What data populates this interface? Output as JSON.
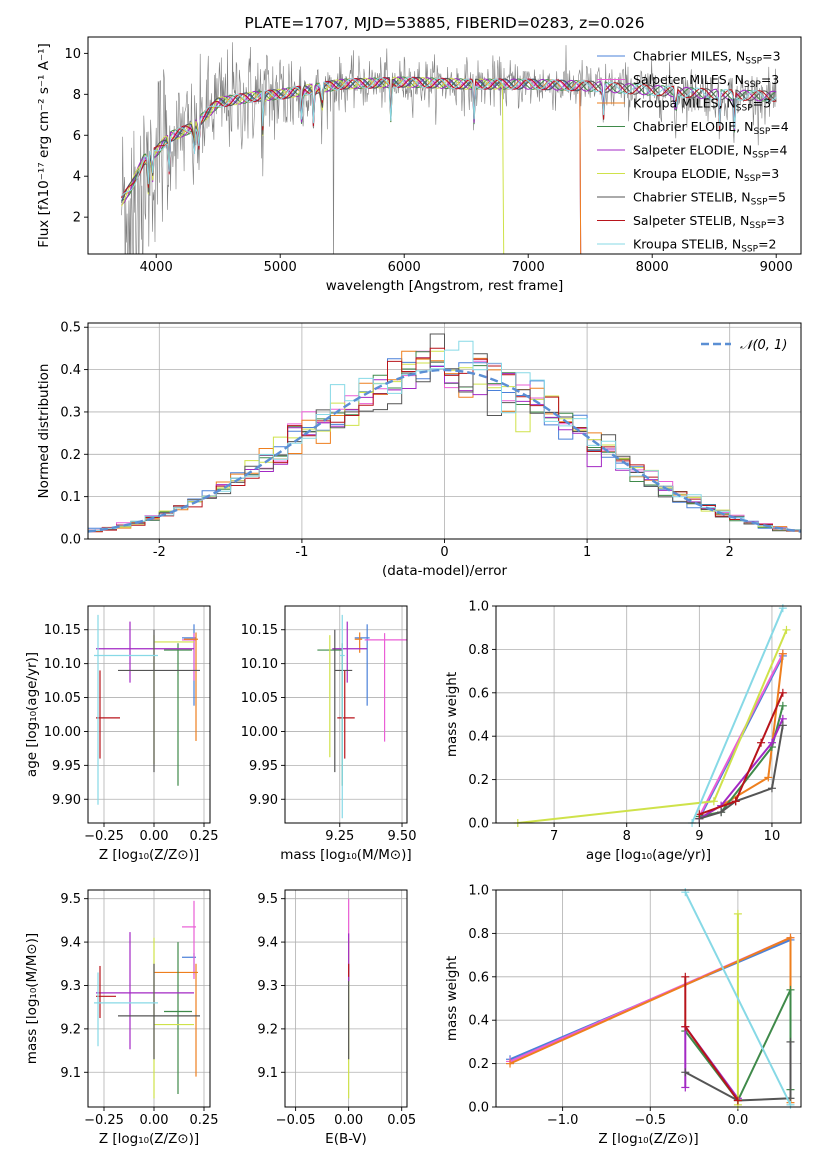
{
  "colors": {
    "chabrier_miles": "#4a80d9",
    "salpeter_miles": "#ea5fd6",
    "kroupa_miles": "#ee7f1e",
    "chabrier_elodie": "#3f8a4a",
    "salpeter_elodie": "#a329c4",
    "kroupa_elodie": "#cfe24a",
    "chabrier_stelib": "#555555",
    "salpeter_stelib": "#b8141b",
    "kroupa_stelib": "#87d9e6",
    "observed": "#808080",
    "normal": "#5b8fd4",
    "grid": "#b0b0b0"
  },
  "legend": [
    {
      "text": "Chabrier MILES, N",
      "sub": "SSP",
      "suffix": "=3",
      "color_key": "chabrier_miles"
    },
    {
      "text": "Salpeter MILES, N",
      "sub": "SSP",
      "suffix": "=3",
      "color_key": "salpeter_miles"
    },
    {
      "text": "Kroupa MILES, N",
      "sub": "SSP",
      "suffix": "=3",
      "color_key": "kroupa_miles"
    },
    {
      "text": "Chabrier ELODIE, N",
      "sub": "SSP",
      "suffix": "=4",
      "color_key": "chabrier_elodie"
    },
    {
      "text": "Salpeter ELODIE, N",
      "sub": "SSP",
      "suffix": "=4",
      "color_key": "salpeter_elodie"
    },
    {
      "text": "Kroupa ELODIE, N",
      "sub": "SSP",
      "suffix": "=3",
      "color_key": "kroupa_elodie"
    },
    {
      "text": "Chabrier STELIB, N",
      "sub": "SSP",
      "suffix": "=5",
      "color_key": "chabrier_stelib"
    },
    {
      "text": "Salpeter STELIB, N",
      "sub": "SSP",
      "suffix": "=3",
      "color_key": "salpeter_stelib"
    },
    {
      "text": "Kroupa STELIB, N",
      "sub": "SSP",
      "suffix": "=2",
      "color_key": "kroupa_stelib"
    }
  ],
  "chart_data": [
    {
      "id": "spectrum",
      "type": "line",
      "title": "PLATE=1707, MJD=53885, FIBERID=0283, z=0.026",
      "xlabel": "wavelength [Angstrom, rest frame]",
      "ylabel": "Flux [fλ10⁻¹⁷ erg cm⁻² s⁻¹ A⁻¹]",
      "xlim": [
        3450,
        9200
      ],
      "ylim": [
        0.2,
        10.8
      ],
      "xticks": [
        4000,
        5000,
        6000,
        7000,
        8000,
        9000
      ],
      "yticks": [
        2,
        4,
        6,
        8,
        10
      ],
      "continuum": [
        [
          3700,
          2.6
        ],
        [
          3800,
          3.5
        ],
        [
          3900,
          4.8
        ],
        [
          4000,
          5.2
        ],
        [
          4100,
          5.9
        ],
        [
          4300,
          6.4
        ],
        [
          4500,
          7.6
        ],
        [
          4800,
          7.9
        ],
        [
          5000,
          8.0
        ],
        [
          5200,
          8.2
        ],
        [
          5500,
          8.5
        ],
        [
          6000,
          8.6
        ],
        [
          6500,
          8.5
        ],
        [
          7000,
          8.5
        ],
        [
          7500,
          8.4
        ],
        [
          8000,
          8.2
        ],
        [
          8500,
          8.0
        ],
        [
          9000,
          7.9
        ]
      ],
      "model_cutoffs": [
        {
          "series": "Kroupa ELODIE",
          "x_end": 6800
        },
        {
          "series": "MILES",
          "x_end": 7420
        }
      ],
      "grid": false,
      "legend_position": "upper-right"
    },
    {
      "id": "residuals",
      "type": "histogram",
      "xlabel": "(data-model)/error",
      "ylabel": "Normed distribution",
      "xlim": [
        -2.5,
        2.5
      ],
      "ylim": [
        0,
        0.51
      ],
      "xticks": [
        -2,
        -1,
        0,
        1,
        2
      ],
      "yticks": [
        0.0,
        0.1,
        0.2,
        0.3,
        0.4,
        0.5
      ],
      "reference_curve": "normal(0,1)",
      "reference_label": "𝒩(0, 1)",
      "bin_width": 0.1,
      "grid": true,
      "legend_position": "upper-right"
    },
    {
      "id": "age_vs_Z",
      "type": "errorbar",
      "xlabel": "Z [log₁₀(Z/Z⊙)]",
      "ylabel": "age  [log₁₀(age/yr)]",
      "xlim": [
        -0.33,
        0.28
      ],
      "ylim": [
        9.865,
        10.185
      ],
      "xticks": [
        -0.25,
        0.0,
        0.25
      ],
      "xticklabels": [
        "−0.25",
        "0.00",
        "0.25"
      ],
      "yticks": [
        9.9,
        9.95,
        10.0,
        10.05,
        10.1,
        10.15
      ],
      "points": [
        {
          "series": "chabrier_miles",
          "x": 0.2,
          "y": 10.138,
          "xerr": [
            0.06,
            0.01
          ],
          "yerr": [
            0.1,
            0.02
          ]
        },
        {
          "series": "salpeter_miles",
          "x": 0.2,
          "y": 10.135,
          "xerr": [
            0.06,
            0.01
          ],
          "yerr": [
            0.06,
            0.01
          ]
        },
        {
          "series": "kroupa_miles",
          "x": 0.21,
          "y": 10.136,
          "xerr": [
            0.06,
            0.01
          ],
          "yerr": [
            0.15,
            0.01
          ]
        },
        {
          "series": "chabrier_elodie",
          "x": 0.12,
          "y": 10.12,
          "xerr": [
            0.07,
            0.07
          ],
          "yerr": [
            0.2,
            0.01
          ]
        },
        {
          "series": "salpeter_elodie",
          "x": -0.12,
          "y": 10.122,
          "xerr": [
            0.17,
            0.32
          ],
          "yerr": [
            0.05,
            0.04
          ]
        },
        {
          "series": "kroupa_elodie",
          "x": 0.0,
          "y": 10.132,
          "xerr": [
            0.0,
            0.2
          ],
          "yerr": [
            0.18,
            0.01
          ]
        },
        {
          "series": "chabrier_stelib",
          "x": 0.0,
          "y": 10.09,
          "xerr": [
            0.18,
            0.23
          ],
          "yerr": [
            0.15,
            0.06
          ]
        },
        {
          "series": "salpeter_stelib",
          "x": -0.27,
          "y": 10.02,
          "xerr": [
            0.02,
            0.1
          ],
          "yerr": [
            0.06,
            0.07
          ]
        },
        {
          "series": "kroupa_stelib",
          "x": -0.28,
          "y": 10.112,
          "xerr": [
            0.02,
            0.3
          ],
          "yerr": [
            0.22,
            0.06
          ]
        }
      ]
    },
    {
      "id": "age_vs_mass",
      "type": "errorbar",
      "xlabel": "mass [log₁₀(M/M⊙)]",
      "ylabel": "",
      "xlim": [
        9.03,
        9.52
      ],
      "ylim": [
        9.865,
        10.185
      ],
      "xticks": [
        9.0,
        9.25,
        9.5
      ],
      "xticklabels": [
        "9.00",
        "9.25",
        "9.50"
      ],
      "yticks": [
        9.9,
        9.95,
        10.0,
        10.05,
        10.1,
        10.15
      ],
      "points": [
        {
          "series": "chabrier_miles",
          "x": 9.36,
          "y": 10.138,
          "xerr": [
            0.05,
            0.01
          ],
          "yerr": [
            0.1,
            0.02
          ]
        },
        {
          "series": "salpeter_miles",
          "x": 9.43,
          "y": 10.135,
          "xerr": [
            0.08,
            0.09
          ],
          "yerr": [
            0.15,
            0.01
          ]
        },
        {
          "series": "kroupa_miles",
          "x": 9.33,
          "y": 10.136,
          "xerr": [
            0.02,
            0.01
          ],
          "yerr": [
            0.02,
            0.01
          ]
        },
        {
          "series": "chabrier_elodie",
          "x": 9.26,
          "y": 10.12,
          "xerr": [
            0.1,
            0.0
          ],
          "yerr": [
            0.2,
            0.01
          ]
        },
        {
          "series": "salpeter_elodie",
          "x": 9.28,
          "y": 10.122,
          "xerr": [
            0.06,
            0.08
          ],
          "yerr": [
            0.05,
            0.04
          ]
        },
        {
          "series": "kroupa_elodie",
          "x": 9.21,
          "y": 10.132,
          "xerr": [
            0.0,
            0.0
          ],
          "yerr": [
            0.17,
            0.01
          ]
        },
        {
          "series": "chabrier_stelib",
          "x": 9.23,
          "y": 10.09,
          "xerr": [
            0.0,
            0.07
          ],
          "yerr": [
            0.15,
            0.06
          ]
        },
        {
          "series": "salpeter_stelib",
          "x": 9.27,
          "y": 10.02,
          "xerr": [
            0.03,
            0.04
          ],
          "yerr": [
            0.06,
            0.07
          ]
        },
        {
          "series": "kroupa_stelib",
          "x": 9.26,
          "y": 10.112,
          "xerr": [
            0.01,
            0.01
          ],
          "yerr": [
            0.24,
            0.06
          ]
        }
      ]
    },
    {
      "id": "weight_vs_age",
      "type": "line",
      "xlabel": "age  [log₁₀(age/yr)]",
      "ylabel": "mass weight",
      "xlim": [
        6.2,
        10.4
      ],
      "ylim": [
        0,
        1
      ],
      "xticks": [
        7,
        8,
        9,
        10
      ],
      "yticks": [
        0.0,
        0.2,
        0.4,
        0.6,
        0.8,
        1.0
      ],
      "series": [
        {
          "color_key": "chabrier_miles",
          "x": [
            9.0,
            10.15
          ],
          "y": [
            0.02,
            0.77
          ]
        },
        {
          "color_key": "salpeter_miles",
          "x": [
            9.0,
            10.15
          ],
          "y": [
            0.03,
            0.78
          ]
        },
        {
          "color_key": "kroupa_miles",
          "x": [
            9.0,
            9.95,
            10.15
          ],
          "y": [
            0.02,
            0.21,
            0.78
          ]
        },
        {
          "color_key": "chabrier_elodie",
          "x": [
            9.0,
            9.3,
            10.0,
            10.15
          ],
          "y": [
            0.03,
            0.05,
            0.35,
            0.54
          ]
        },
        {
          "color_key": "salpeter_elodie",
          "x": [
            9.0,
            9.3,
            10.0,
            10.15
          ],
          "y": [
            0.02,
            0.08,
            0.37,
            0.48
          ]
        },
        {
          "color_key": "kroupa_elodie",
          "x": [
            6.5,
            9.2,
            10.2
          ],
          "y": [
            0.0,
            0.1,
            0.89
          ]
        },
        {
          "color_key": "chabrier_stelib",
          "x": [
            9.0,
            9.3,
            9.5,
            10.0,
            10.15
          ],
          "y": [
            0.02,
            0.05,
            0.1,
            0.16,
            0.45
          ]
        },
        {
          "color_key": "salpeter_stelib",
          "x": [
            9.0,
            9.5,
            9.85,
            10.15
          ],
          "y": [
            0.04,
            0.1,
            0.37,
            0.6
          ]
        },
        {
          "color_key": "kroupa_stelib",
          "x": [
            8.9,
            10.15
          ],
          "y": [
            0.0,
            0.99
          ]
        }
      ],
      "grid": true
    },
    {
      "id": "mass_vs_Z",
      "type": "errorbar",
      "xlabel": "Z [log₁₀(Z/Z⊙)]",
      "ylabel": "mass [log₁₀(M/M⊙)]",
      "xlim": [
        -0.33,
        0.28
      ],
      "ylim": [
        9.02,
        9.52
      ],
      "xticks": [
        -0.25,
        0.0,
        0.25
      ],
      "xticklabels": [
        "−0.25",
        "0.00",
        "0.25"
      ],
      "yticks": [
        9.1,
        9.2,
        9.3,
        9.4,
        9.5
      ],
      "points": [
        {
          "series": "chabrier_miles",
          "x": 0.2,
          "y": 9.365,
          "xerr": [
            0.06,
            0.01
          ],
          "yerr": [
            0.04,
            0.01
          ]
        },
        {
          "series": "salpeter_miles",
          "x": 0.2,
          "y": 9.435,
          "xerr": [
            0.06,
            0.01
          ],
          "yerr": [
            0.12,
            0.06
          ]
        },
        {
          "series": "kroupa_miles",
          "x": 0.21,
          "y": 9.33,
          "xerr": [
            0.21,
            0.01
          ],
          "yerr": [
            0.24,
            0.02
          ]
        },
        {
          "series": "chabrier_elodie",
          "x": 0.12,
          "y": 9.24,
          "xerr": [
            0.07,
            0.07
          ],
          "yerr": [
            0.19,
            0.16
          ]
        },
        {
          "series": "salpeter_elodie",
          "x": -0.12,
          "y": 9.283,
          "xerr": [
            0.17,
            0.32
          ],
          "yerr": [
            0.13,
            0.14
          ]
        },
        {
          "series": "kroupa_elodie",
          "x": 0.0,
          "y": 9.21,
          "xerr": [
            0.0,
            0.2
          ],
          "yerr": [
            0.17,
            0.2
          ]
        },
        {
          "series": "chabrier_stelib",
          "x": 0.0,
          "y": 9.23,
          "xerr": [
            0.18,
            0.23
          ],
          "yerr": [
            0.1,
            0.12
          ]
        },
        {
          "series": "salpeter_stelib",
          "x": -0.27,
          "y": 9.275,
          "xerr": [
            0.02,
            0.08
          ],
          "yerr": [
            0.05,
            0.07
          ]
        },
        {
          "series": "kroupa_stelib",
          "x": -0.28,
          "y": 9.26,
          "xerr": [
            0.02,
            0.3
          ],
          "yerr": [
            0.1,
            0.07
          ]
        }
      ]
    },
    {
      "id": "mass_vs_EBV",
      "type": "errorbar",
      "xlabel": "E(B-V)",
      "ylabel": "",
      "xlim": [
        -0.06,
        0.055
      ],
      "ylim": [
        9.02,
        9.52
      ],
      "xticks": [
        -0.05,
        0.0,
        0.05
      ],
      "xticklabels": [
        "−0.05",
        "0.00",
        "0.05"
      ],
      "yticks": [
        9.1,
        9.2,
        9.3,
        9.4,
        9.5
      ],
      "points": [
        {
          "series": "salpeter_miles",
          "x": 0.0,
          "y": 9.43,
          "xerr": [
            0,
            0
          ],
          "yerr": [
            0.12,
            0.07
          ]
        },
        {
          "series": "kroupa_elodie",
          "x": 0.0,
          "y": 9.21,
          "xerr": [
            0,
            0
          ],
          "yerr": [
            0.17,
            0.2
          ]
        },
        {
          "series": "chabrier_stelib",
          "x": 0.0,
          "y": 9.23,
          "xerr": [
            0,
            0
          ],
          "yerr": [
            0.1,
            0.12
          ]
        },
        {
          "series": "salpeter_elodie",
          "x": 0.0,
          "y": 9.35,
          "xerr": [
            0,
            0
          ],
          "yerr": [
            0.04,
            0.07
          ]
        },
        {
          "series": "salpeter_stelib",
          "x": 0.0,
          "y": 9.33,
          "xerr": [
            0,
            0
          ],
          "yerr": [
            0.01,
            0.02
          ]
        }
      ]
    },
    {
      "id": "weight_vs_Z",
      "type": "line",
      "xlabel": "Z [log₁₀(Z/Z⊙)]",
      "ylabel": "mass weight",
      "xlim": [
        -1.38,
        0.36
      ],
      "ylim": [
        0,
        1
      ],
      "xticks": [
        -1.0,
        -0.5,
        0.0
      ],
      "xticklabels": [
        "−1.0",
        "−0.5",
        "0.0"
      ],
      "yticks": [
        0.0,
        0.2,
        0.4,
        0.6,
        0.8,
        1.0
      ],
      "series": [
        {
          "color_key": "chabrier_miles",
          "x": [
            -1.3,
            0.3
          ],
          "y": [
            0.22,
            0.77
          ]
        },
        {
          "color_key": "salpeter_miles",
          "x": [
            -1.3,
            0.3
          ],
          "y": [
            0.21,
            0.78
          ]
        },
        {
          "color_key": "kroupa_miles",
          "x": [
            -1.3,
            0.3,
            0.3
          ],
          "y": [
            0.2,
            0.78,
            0.02
          ]
        },
        {
          "color_key": "chabrier_elodie",
          "x": [
            -0.3,
            0.0,
            0.3,
            0.3
          ],
          "y": [
            0.35,
            0.03,
            0.54,
            0.08
          ]
        },
        {
          "color_key": "salpeter_elodie",
          "x": [
            -0.3,
            -0.3,
            0.0
          ],
          "y": [
            0.09,
            0.37,
            0.04
          ]
        },
        {
          "color_key": "kroupa_elodie",
          "x": [
            0.0,
            0.0
          ],
          "y": [
            0.89,
            0.01
          ]
        },
        {
          "color_key": "chabrier_stelib",
          "x": [
            -0.3,
            0.0,
            0.3,
            0.3
          ],
          "y": [
            0.16,
            0.03,
            0.04,
            0.3
          ]
        },
        {
          "color_key": "salpeter_stelib",
          "x": [
            -0.3,
            -0.3,
            0.0
          ],
          "y": [
            0.6,
            0.37,
            0.03
          ]
        },
        {
          "color_key": "kroupa_stelib",
          "x": [
            -0.3,
            0.3
          ],
          "y": [
            0.99,
            0.01
          ]
        }
      ],
      "grid": true
    }
  ]
}
